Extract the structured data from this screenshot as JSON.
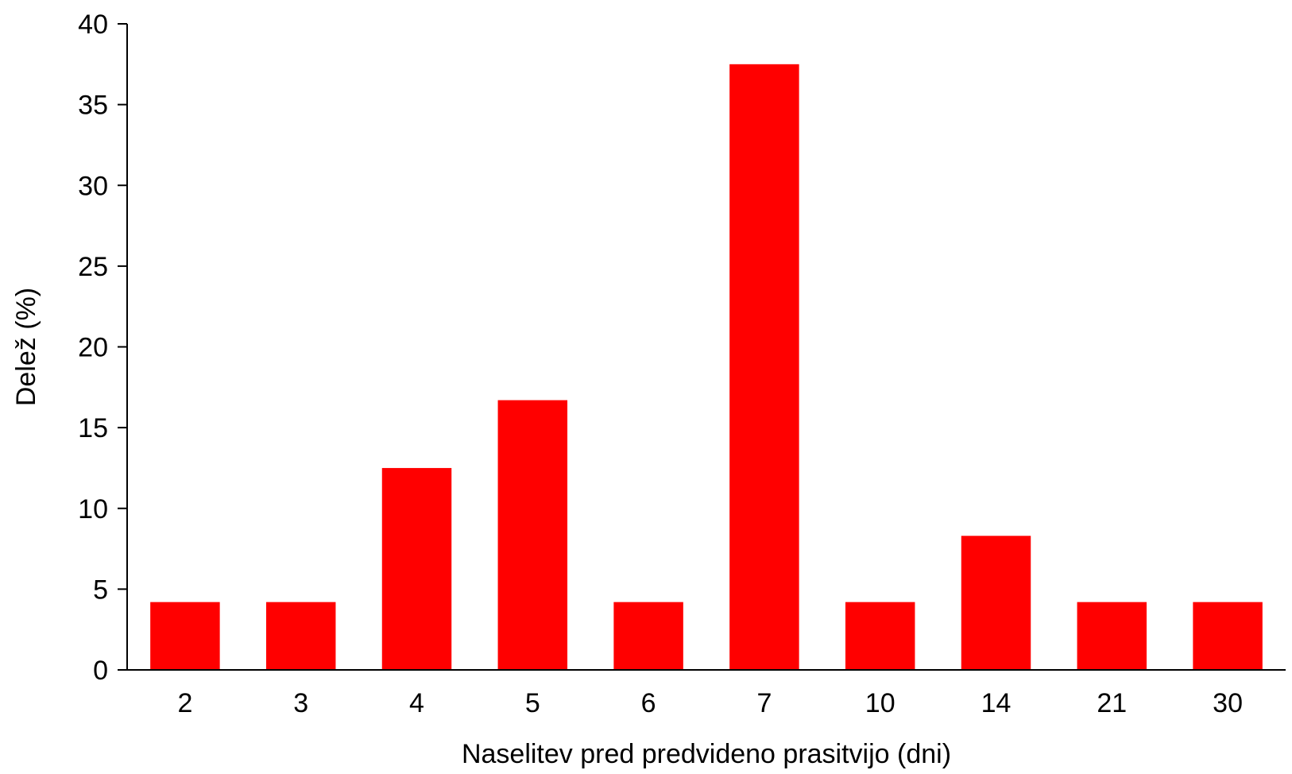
{
  "chart_data": {
    "type": "bar",
    "title": "",
    "xlabel": "Naselitev pred predvideno prasitvijo (dni)",
    "ylabel": "Delež (%)",
    "categories": [
      "2",
      "3",
      "4",
      "5",
      "6",
      "7",
      "10",
      "14",
      "21",
      "30"
    ],
    "values": [
      4.2,
      4.2,
      12.5,
      16.7,
      4.2,
      37.5,
      4.2,
      8.3,
      4.2,
      4.2
    ],
    "ylim": [
      0,
      40
    ],
    "yticks": [
      0,
      5,
      10,
      15,
      20,
      25,
      30,
      35,
      40
    ],
    "grid": false,
    "legend": "none",
    "bar_color": "#ff0000"
  }
}
